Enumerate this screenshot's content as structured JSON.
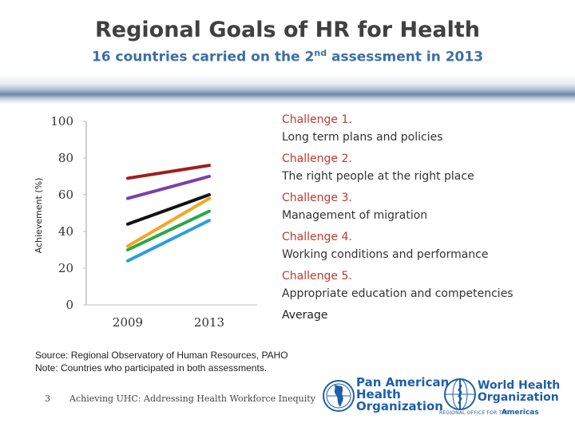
{
  "header": {
    "title": "Regional Goals of HR for Health",
    "subtitle_pre": "16 countries carried on the 2",
    "subtitle_sup": "nd",
    "subtitle_post": " assessment in 2013"
  },
  "colors": {
    "challenge1": "#a11d1d",
    "challenge2": "#7a3fa8",
    "challenge3": "#2aa84a",
    "challenge4": "#f5a623",
    "challenge5": "#2b9fe0",
    "average": "#111111",
    "legend_red": "#c0392b",
    "title_gray": "#404040",
    "subtitle_blue": "#3b6fa6"
  },
  "chart_data": {
    "type": "line",
    "title": "",
    "xlabel": "",
    "ylabel": "Achievement (%)",
    "x": [
      "2009",
      "2013"
    ],
    "ylim": [
      0,
      100
    ],
    "yticks": [
      "100",
      "80",
      "60",
      "40",
      "20",
      "0"
    ],
    "series": [
      {
        "name": "Challenge 1.",
        "values": [
          69,
          76
        ],
        "color": "#a11d1d"
      },
      {
        "name": "Challenge 2.",
        "values": [
          58,
          70
        ],
        "color": "#7a3fa8"
      },
      {
        "name": "Average",
        "values": [
          44,
          60
        ],
        "color": "#111111"
      },
      {
        "name": "Challenge 4.",
        "values": [
          32,
          58
        ],
        "color": "#f5a623"
      },
      {
        "name": "Challenge 3.",
        "values": [
          30,
          51
        ],
        "color": "#2aa84a"
      },
      {
        "name": "Challenge 5.",
        "values": [
          24,
          46
        ],
        "color": "#2b9fe0"
      }
    ]
  },
  "legend": [
    {
      "name": "Challenge 1.",
      "desc": "Long term plans and policies"
    },
    {
      "name": "Challenge 2.",
      "desc": "The right people at the right place"
    },
    {
      "name": "Challenge 3.",
      "desc": "Management of migration"
    },
    {
      "name": "Challenge 4.",
      "desc": "Working conditions and performance"
    },
    {
      "name": "Challenge 5.",
      "desc": "Appropriate education and competencies"
    }
  ],
  "legend_average": "Average",
  "source": {
    "line1": "Source: Regional Observatory of Human Resources, PAHO",
    "line2": "Note: Countries who participated in both assessments."
  },
  "footer": {
    "slide_number": "3",
    "text": "Achieving UHC: Addressing Health Workforce Inequity"
  },
  "logos": {
    "paho_line1": "Pan American",
    "paho_line2": "Health",
    "paho_line3": "Organization",
    "who_line1": "World Health",
    "who_line2": "Organization",
    "who_sub": "REGIONAL OFFICE FOR THE",
    "who_region": "Americas"
  }
}
